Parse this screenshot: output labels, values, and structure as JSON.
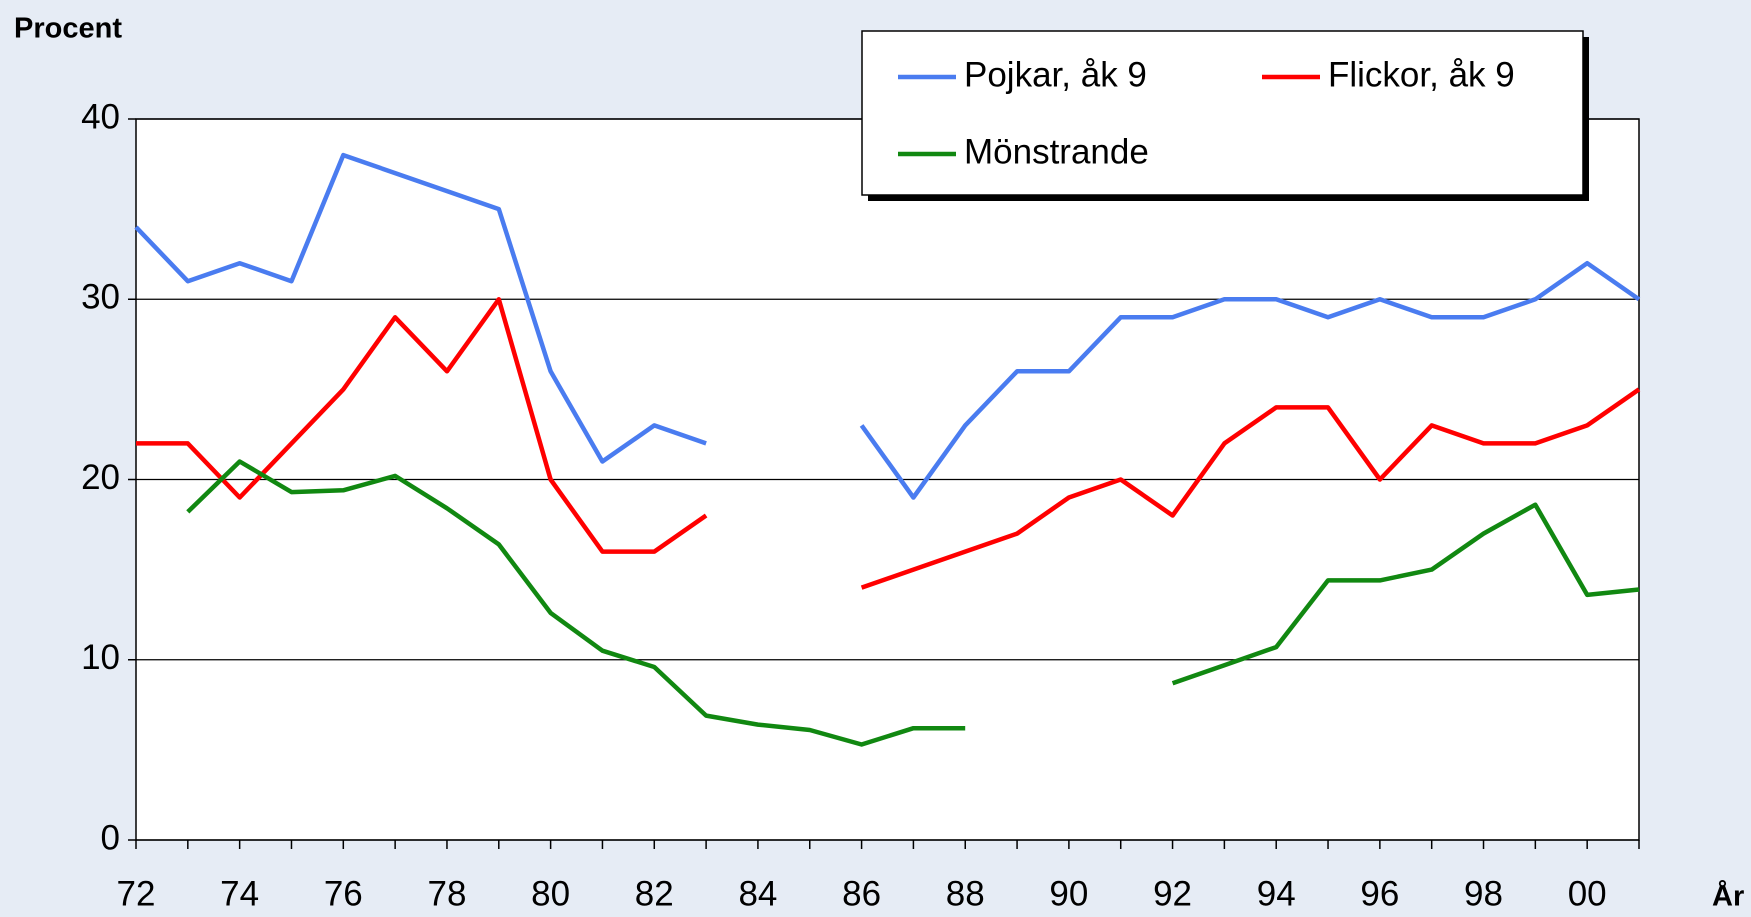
{
  "chart_data": {
    "type": "line",
    "y_label": "Procent",
    "x_label": "År",
    "categories": [
      "72",
      null,
      "74",
      null,
      "76",
      null,
      "78",
      null,
      "80",
      null,
      "82",
      null,
      "84",
      null,
      "86",
      null,
      "88",
      null,
      "90",
      null,
      "92",
      null,
      "94",
      null,
      "96",
      null,
      "98",
      null,
      "00",
      null
    ],
    "series": [
      {
        "name": "Pojkar, åk 9",
        "color": "#4a7cf0",
        "values": [
          34,
          31,
          32,
          31,
          38,
          37,
          36,
          35,
          26,
          21,
          23,
          22,
          null,
          null,
          23,
          19,
          23,
          26,
          26,
          29,
          29,
          30,
          30,
          29,
          30,
          29,
          29,
          30,
          32,
          30
        ]
      },
      {
        "name": "Flickor, åk 9",
        "color": "#ff0000",
        "values": [
          22,
          22,
          19,
          22,
          25,
          29,
          26,
          30,
          20,
          16,
          16,
          18,
          null,
          null,
          14,
          15,
          16,
          17,
          19,
          20,
          18,
          22,
          24,
          24,
          20,
          23,
          22,
          22,
          23,
          25
        ]
      },
      {
        "name": "Mönstrande",
        "color": "#118811",
        "values": [
          null,
          18.2,
          21,
          19.3,
          19.4,
          20.2,
          18.4,
          16.4,
          12.6,
          10.5,
          9.6,
          6.9,
          6.4,
          6.1,
          5.3,
          6.2,
          6.2,
          null,
          null,
          null,
          8.7,
          9.7,
          10.7,
          14.4,
          14.4,
          15,
          17,
          18.6,
          13.6,
          13.9
        ]
      }
    ],
    "ylim": [
      0,
      40
    ],
    "yticks": [
      0,
      10,
      20,
      30,
      40
    ],
    "grid": true,
    "legend": "upper right"
  }
}
